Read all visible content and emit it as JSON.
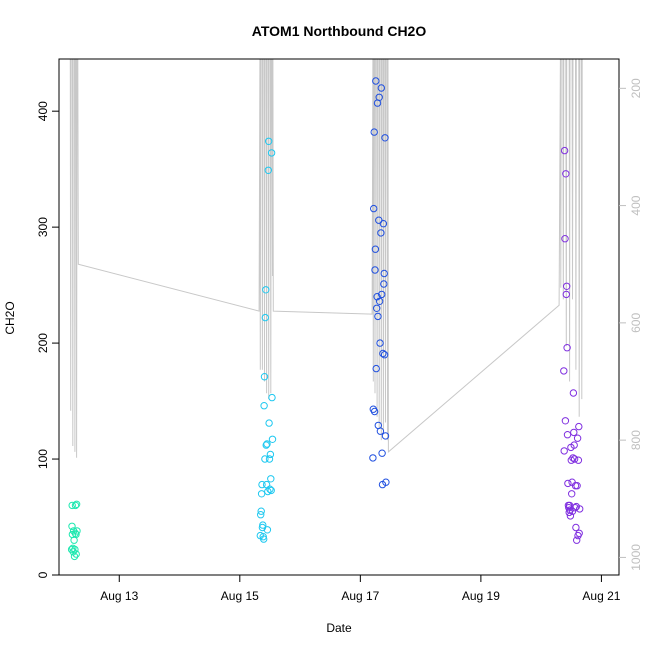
{
  "chart_data": {
    "type": "scatter",
    "title": "ATOM1 Northbound CH2O",
    "xlabel": "Date",
    "ylabel": "CH2O",
    "x_axis_type": "date",
    "xlim": [
      "2016-08-12 00:00",
      "2016-08-21 07:00"
    ],
    "ylim": [
      0,
      445
    ],
    "x_ticks": [
      {
        "date": "2016-08-13",
        "label": "Aug 13"
      },
      {
        "date": "2016-08-15",
        "label": "Aug 15"
      },
      {
        "date": "2016-08-17",
        "label": "Aug 17"
      },
      {
        "date": "2016-08-19",
        "label": "Aug 19"
      },
      {
        "date": "2016-08-21",
        "label": "Aug 21"
      }
    ],
    "y_ticks": [
      0,
      100,
      200,
      300,
      400
    ],
    "y2_axis": {
      "reversed": true,
      "lim": [
        1030,
        150
      ],
      "ticks": [
        200,
        400,
        600,
        800,
        1000
      ],
      "color": "#bfbfbf"
    },
    "grid": false,
    "legend": "none",
    "colors": {
      "aug12": "#1ee8b0",
      "aug15": "#1ec8f0",
      "aug17": "#2050e0",
      "aug20": "#8030e0",
      "secondary_line": "#c8c8c8",
      "axis": "#000000"
    },
    "series": [
      {
        "color": "#1ee8b0",
        "points": [
          [
            "2016-08-12 05:00",
            22
          ],
          [
            "2016-08-12 05:10",
            42
          ],
          [
            "2016-08-12 05:15",
            60
          ],
          [
            "2016-08-12 05:20",
            35
          ],
          [
            "2016-08-12 05:30",
            23
          ],
          [
            "2016-08-12 05:40",
            20
          ],
          [
            "2016-08-12 05:50",
            38
          ],
          [
            "2016-08-12 06:00",
            30
          ],
          [
            "2016-08-12 06:10",
            16
          ],
          [
            "2016-08-12 06:20",
            22
          ],
          [
            "2016-08-12 06:30",
            36
          ],
          [
            "2016-08-12 06:35",
            60
          ],
          [
            "2016-08-12 06:45",
            35
          ],
          [
            "2016-08-12 06:50",
            18
          ],
          [
            "2016-08-12 07:00",
            61
          ],
          [
            "2016-08-12 07:10",
            38
          ]
        ]
      },
      {
        "color": "#1ec8f0",
        "points": [
          [
            "2016-08-15 08:10",
            34
          ],
          [
            "2016-08-15 08:20",
            52
          ],
          [
            "2016-08-15 08:30",
            55
          ],
          [
            "2016-08-15 08:40",
            70
          ],
          [
            "2016-08-15 08:50",
            78
          ],
          [
            "2016-08-15 09:00",
            41
          ],
          [
            "2016-08-15 09:10",
            43
          ],
          [
            "2016-08-15 09:20",
            33
          ],
          [
            "2016-08-15 09:30",
            31
          ],
          [
            "2016-08-15 09:40",
            146
          ],
          [
            "2016-08-15 09:50",
            171
          ],
          [
            "2016-08-15 10:00",
            100
          ],
          [
            "2016-08-15 10:10",
            222
          ],
          [
            "2016-08-15 10:20",
            246
          ],
          [
            "2016-08-15 10:30",
            112
          ],
          [
            "2016-08-15 10:40",
            78
          ],
          [
            "2016-08-15 10:50",
            113
          ],
          [
            "2016-08-15 11:00",
            39
          ],
          [
            "2016-08-15 11:10",
            72
          ],
          [
            "2016-08-15 11:20",
            349
          ],
          [
            "2016-08-15 11:30",
            374
          ],
          [
            "2016-08-15 11:40",
            131
          ],
          [
            "2016-08-15 11:50",
            100
          ],
          [
            "2016-08-15 12:00",
            74
          ],
          [
            "2016-08-15 12:10",
            104
          ],
          [
            "2016-08-15 12:20",
            83
          ],
          [
            "2016-08-15 12:30",
            73
          ],
          [
            "2016-08-15 12:40",
            364
          ],
          [
            "2016-08-15 12:50",
            153
          ],
          [
            "2016-08-15 13:00",
            117
          ]
        ]
      },
      {
        "color": "#2050e0",
        "points": [
          [
            "2016-08-17 05:00",
            101
          ],
          [
            "2016-08-17 05:10",
            143
          ],
          [
            "2016-08-17 05:20",
            316
          ],
          [
            "2016-08-17 05:30",
            382
          ],
          [
            "2016-08-17 05:40",
            141
          ],
          [
            "2016-08-17 05:50",
            263
          ],
          [
            "2016-08-17 06:00",
            281
          ],
          [
            "2016-08-17 06:10",
            426
          ],
          [
            "2016-08-17 06:20",
            178
          ],
          [
            "2016-08-17 06:30",
            230
          ],
          [
            "2016-08-17 06:40",
            240
          ],
          [
            "2016-08-17 06:50",
            407
          ],
          [
            "2016-08-17 07:00",
            223
          ],
          [
            "2016-08-17 07:10",
            129
          ],
          [
            "2016-08-17 07:20",
            306
          ],
          [
            "2016-08-17 07:30",
            412
          ],
          [
            "2016-08-17 07:40",
            236
          ],
          [
            "2016-08-17 07:50",
            200
          ],
          [
            "2016-08-17 08:00",
            124
          ],
          [
            "2016-08-17 08:10",
            295
          ],
          [
            "2016-08-17 08:20",
            420
          ],
          [
            "2016-08-17 08:30",
            242
          ],
          [
            "2016-08-17 08:40",
            105
          ],
          [
            "2016-08-17 08:50",
            78
          ],
          [
            "2016-08-17 09:00",
            191
          ],
          [
            "2016-08-17 09:10",
            303
          ],
          [
            "2016-08-17 09:20",
            251
          ],
          [
            "2016-08-17 09:30",
            260
          ],
          [
            "2016-08-17 09:40",
            190
          ],
          [
            "2016-08-17 09:50",
            377
          ],
          [
            "2016-08-17 10:00",
            120
          ],
          [
            "2016-08-17 10:10",
            80
          ]
        ]
      },
      {
        "color": "#8030e0",
        "points": [
          [
            "2016-08-20 09:00",
            176
          ],
          [
            "2016-08-20 09:10",
            107
          ],
          [
            "2016-08-20 09:20",
            366
          ],
          [
            "2016-08-20 09:30",
            290
          ],
          [
            "2016-08-20 09:40",
            133
          ],
          [
            "2016-08-20 09:50",
            346
          ],
          [
            "2016-08-20 10:00",
            242
          ],
          [
            "2016-08-20 10:10",
            249
          ],
          [
            "2016-08-20 10:20",
            196
          ],
          [
            "2016-08-20 10:30",
            121
          ],
          [
            "2016-08-20 10:40",
            79
          ],
          [
            "2016-08-20 10:50",
            60
          ],
          [
            "2016-08-20 11:00",
            58
          ],
          [
            "2016-08-20 11:10",
            54
          ],
          [
            "2016-08-20 11:20",
            60
          ],
          [
            "2016-08-20 11:30",
            56
          ],
          [
            "2016-08-20 11:40",
            51
          ],
          [
            "2016-08-20 11:50",
            110
          ],
          [
            "2016-08-20 12:00",
            99
          ],
          [
            "2016-08-20 12:10",
            70
          ],
          [
            "2016-08-20 12:20",
            80
          ],
          [
            "2016-08-20 12:30",
            55
          ],
          [
            "2016-08-20 12:40",
            101
          ],
          [
            "2016-08-20 12:50",
            157
          ],
          [
            "2016-08-20 13:00",
            123
          ],
          [
            "2016-08-20 13:10",
            112
          ],
          [
            "2016-08-20 13:20",
            100
          ],
          [
            "2016-08-20 13:30",
            58
          ],
          [
            "2016-08-20 13:40",
            77
          ],
          [
            "2016-08-20 13:50",
            41
          ],
          [
            "2016-08-20 14:00",
            59
          ],
          [
            "2016-08-20 14:10",
            30
          ],
          [
            "2016-08-20 14:20",
            77
          ],
          [
            "2016-08-20 14:30",
            118
          ],
          [
            "2016-08-20 14:40",
            34
          ],
          [
            "2016-08-20 14:50",
            99
          ],
          [
            "2016-08-20 15:00",
            128
          ],
          [
            "2016-08-20 15:10",
            36
          ],
          [
            "2016-08-20 15:20",
            57
          ]
        ]
      }
    ],
    "secondary_series": {
      "axis": "right",
      "color": "#c8c8c8",
      "points": [
        [
          "2016-08-12 04:30",
          150
        ],
        [
          "2016-08-12 04:40",
          750
        ],
        [
          "2016-08-12 04:50",
          150
        ],
        [
          "2016-08-12 05:20",
          150
        ],
        [
          "2016-08-12 05:30",
          810
        ],
        [
          "2016-08-12 05:40",
          150
        ],
        [
          "2016-08-12 06:10",
          150
        ],
        [
          "2016-08-12 06:20",
          820
        ],
        [
          "2016-08-12 06:30",
          150
        ],
        [
          "2016-08-12 06:50",
          150
        ],
        [
          "2016-08-12 07:00",
          830
        ],
        [
          "2016-08-12 07:10",
          150
        ],
        [
          "2016-08-12 07:30",
          150
        ],
        [
          "2016-08-12 07:40",
          500
        ],
        [
          "2016-08-15 07:40",
          580
        ],
        [
          "2016-08-15 08:00",
          150
        ],
        [
          "2016-08-15 08:10",
          680
        ],
        [
          "2016-08-15 08:20",
          150
        ],
        [
          "2016-08-15 08:50",
          150
        ],
        [
          "2016-08-15 09:00",
          680
        ],
        [
          "2016-08-15 09:10",
          150
        ],
        [
          "2016-08-15 09:40",
          150
        ],
        [
          "2016-08-15 09:50",
          700
        ],
        [
          "2016-08-15 10:00",
          150
        ],
        [
          "2016-08-15 10:30",
          150
        ],
        [
          "2016-08-15 10:40",
          720
        ],
        [
          "2016-08-15 10:50",
          150
        ],
        [
          "2016-08-15 11:20",
          150
        ],
        [
          "2016-08-15 11:30",
          730
        ],
        [
          "2016-08-15 11:40",
          150
        ],
        [
          "2016-08-15 12:10",
          150
        ],
        [
          "2016-08-15 12:20",
          720
        ],
        [
          "2016-08-15 12:30",
          150
        ],
        [
          "2016-08-15 12:50",
          150
        ],
        [
          "2016-08-15 13:00",
          520
        ],
        [
          "2016-08-15 13:10",
          150
        ],
        [
          "2016-08-15 13:20",
          580
        ],
        [
          "2016-08-17 04:40",
          585
        ],
        [
          "2016-08-17 05:00",
          150
        ],
        [
          "2016-08-17 05:10",
          700
        ],
        [
          "2016-08-17 05:20",
          150
        ],
        [
          "2016-08-17 05:40",
          150
        ],
        [
          "2016-08-17 05:50",
          720
        ],
        [
          "2016-08-17 06:00",
          150
        ],
        [
          "2016-08-17 06:30",
          150
        ],
        [
          "2016-08-17 06:40",
          760
        ],
        [
          "2016-08-17 06:50",
          150
        ],
        [
          "2016-08-17 07:20",
          150
        ],
        [
          "2016-08-17 07:30",
          780
        ],
        [
          "2016-08-17 07:40",
          150
        ],
        [
          "2016-08-17 08:10",
          150
        ],
        [
          "2016-08-17 08:20",
          800
        ],
        [
          "2016-08-17 08:30",
          150
        ],
        [
          "2016-08-17 09:00",
          150
        ],
        [
          "2016-08-17 09:10",
          790
        ],
        [
          "2016-08-17 09:20",
          150
        ],
        [
          "2016-08-17 09:50",
          150
        ],
        [
          "2016-08-17 10:00",
          770
        ],
        [
          "2016-08-17 10:10",
          150
        ],
        [
          "2016-08-17 10:40",
          150
        ],
        [
          "2016-08-17 10:50",
          800
        ],
        [
          "2016-08-17 11:00",
          150
        ],
        [
          "2016-08-17 11:10",
          820
        ],
        [
          "2016-08-20 07:10",
          570
        ],
        [
          "2016-08-20 07:40",
          150
        ],
        [
          "2016-08-20 07:50",
          540
        ],
        [
          "2016-08-20 08:00",
          150
        ],
        [
          "2016-08-20 08:40",
          150
        ],
        [
          "2016-08-20 08:50",
          560
        ],
        [
          "2016-08-20 09:00",
          150
        ],
        [
          "2016-08-20 09:50",
          150
        ],
        [
          "2016-08-20 10:00",
          640
        ],
        [
          "2016-08-20 10:10",
          150
        ],
        [
          "2016-08-20 11:10",
          150
        ],
        [
          "2016-08-20 11:20",
          700
        ],
        [
          "2016-08-20 11:30",
          150
        ],
        [
          "2016-08-20 12:20",
          150
        ],
        [
          "2016-08-20 12:30",
          560
        ],
        [
          "2016-08-20 12:40",
          150
        ],
        [
          "2016-08-20 13:40",
          150
        ],
        [
          "2016-08-20 13:50",
          680
        ],
        [
          "2016-08-20 14:00",
          150
        ],
        [
          "2016-08-20 15:00",
          150
        ],
        [
          "2016-08-20 15:10",
          760
        ],
        [
          "2016-08-20 15:20",
          150
        ],
        [
          "2016-08-20 16:00",
          150
        ],
        [
          "2016-08-20 16:10",
          730
        ],
        [
          "2016-08-20 16:20",
          150
        ]
      ]
    }
  }
}
